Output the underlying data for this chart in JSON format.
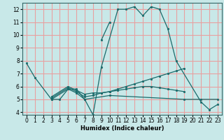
{
  "xlabel": "Humidex (Indice chaleur)",
  "bg_color": "#c8e8e8",
  "grid_color": "#e8a0a0",
  "line_color": "#1a6b6b",
  "ylim": [
    3.8,
    12.5
  ],
  "xlim": [
    -0.5,
    23.5
  ],
  "yticks": [
    4,
    5,
    6,
    7,
    8,
    9,
    10,
    11,
    12
  ],
  "xticks": [
    0,
    1,
    2,
    3,
    4,
    5,
    6,
    7,
    8,
    9,
    10,
    11,
    12,
    13,
    14,
    15,
    16,
    17,
    18,
    19,
    20,
    21,
    22,
    23
  ],
  "lines": [
    {
      "x": [
        0,
        1,
        3,
        4,
        5,
        6,
        7,
        8,
        9,
        11,
        12,
        13,
        14,
        15,
        16,
        17,
        18,
        21,
        22,
        23
      ],
      "y": [
        7.8,
        6.7,
        5.0,
        5.0,
        5.8,
        5.8,
        5.0,
        3.8,
        7.5,
        12.0,
        12.0,
        12.2,
        11.5,
        12.2,
        12.0,
        10.5,
        8.0,
        4.8,
        4.2,
        4.6
      ]
    },
    {
      "x": [
        3,
        5,
        6,
        7,
        8,
        9,
        10,
        11,
        12,
        13,
        14,
        15,
        16,
        17,
        18,
        19
      ],
      "y": [
        5.1,
        5.9,
        5.6,
        5.2,
        5.3,
        5.5,
        5.6,
        5.8,
        6.0,
        6.2,
        6.4,
        6.6,
        6.8,
        7.0,
        7.2,
        7.4
      ]
    },
    {
      "x": [
        3,
        5,
        6,
        7,
        10,
        19,
        21,
        23
      ],
      "y": [
        5.0,
        5.8,
        5.5,
        5.0,
        5.3,
        5.0,
        5.0,
        5.0
      ]
    },
    {
      "x": [
        3,
        5,
        6,
        7,
        8,
        9,
        10,
        11,
        12,
        13,
        14,
        15,
        16,
        17,
        18,
        19
      ],
      "y": [
        5.2,
        6.0,
        5.7,
        5.4,
        5.5,
        5.5,
        5.6,
        5.7,
        5.8,
        5.9,
        6.0,
        6.0,
        5.9,
        5.8,
        5.7,
        5.6
      ]
    },
    {
      "x": [
        9,
        10
      ],
      "y": [
        9.6,
        11.0
      ]
    }
  ]
}
